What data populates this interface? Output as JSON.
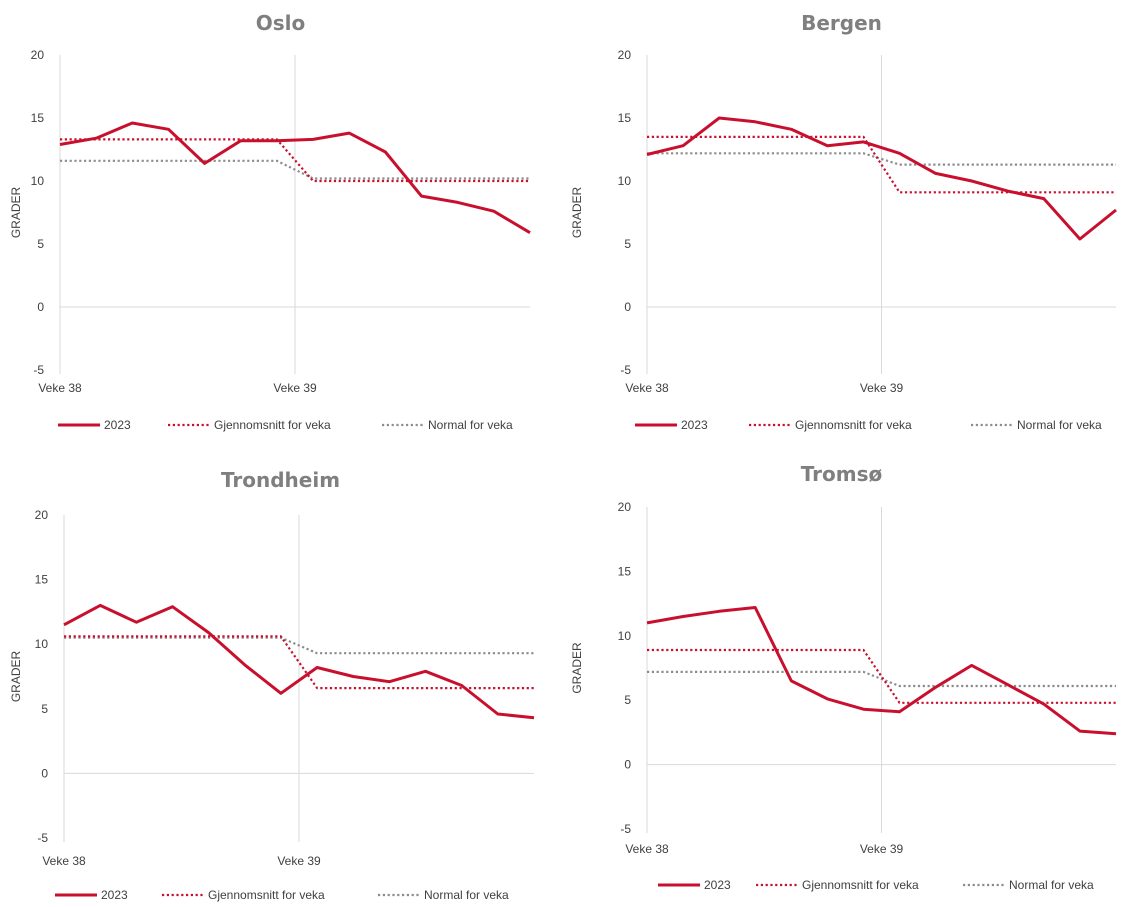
{
  "colors": {
    "actual": "#c8102e",
    "average": "#c8102e",
    "normal": "#8c8c8c",
    "grid": "#d9d9d9",
    "title": "#7f7f7f"
  },
  "legend": {
    "actual": "2023",
    "average": "Gjennomsnitt for veka",
    "normal": "Normal for veka"
  },
  "chart_data": [
    {
      "type": "line",
      "title": "Oslo",
      "ylabel": "GRADER",
      "ylim": [
        -5,
        20
      ],
      "yticks": [
        "-5",
        "0",
        "5",
        "10",
        "15",
        "20"
      ],
      "xticklabels": [
        "Veke 38",
        "Veke 39"
      ],
      "grid": "vertical line at Veke 39",
      "legend_position": "bottom",
      "series": [
        {
          "name": "2023",
          "style": "solid",
          "values": [
            12.9,
            13.4,
            14.6,
            14.1,
            11.4,
            13.2,
            13.2,
            13.3,
            13.8,
            12.3,
            8.8,
            8.3,
            7.6,
            5.9
          ]
        },
        {
          "name": "Gjennomsnitt for veka",
          "style": "dotted",
          "values": [
            13.3,
            13.3,
            13.3,
            13.3,
            13.3,
            13.3,
            13.3,
            10.0,
            10.0,
            10.0,
            10.0,
            10.0,
            10.0,
            10.0
          ]
        },
        {
          "name": "Normal for veka",
          "style": "dotted",
          "values": [
            11.6,
            11.6,
            11.6,
            11.6,
            11.6,
            11.6,
            11.6,
            10.2,
            10.2,
            10.2,
            10.2,
            10.2,
            10.2,
            10.2
          ]
        }
      ]
    },
    {
      "type": "line",
      "title": "Bergen",
      "ylabel": "GRADER",
      "ylim": [
        -5,
        20
      ],
      "yticks": [
        "-5",
        "0",
        "5",
        "10",
        "15",
        "20"
      ],
      "xticklabels": [
        "Veke 38",
        "Veke 39"
      ],
      "grid": "vertical line at Veke 39",
      "legend_position": "bottom",
      "series": [
        {
          "name": "2023",
          "style": "solid",
          "values": [
            12.1,
            12.8,
            15.0,
            14.7,
            14.1,
            12.8,
            13.1,
            12.2,
            10.6,
            10.0,
            9.2,
            8.6,
            5.4,
            7.7
          ]
        },
        {
          "name": "Gjennomsnitt for veka",
          "style": "dotted",
          "values": [
            13.5,
            13.5,
            13.5,
            13.5,
            13.5,
            13.5,
            13.5,
            9.1,
            9.1,
            9.1,
            9.1,
            9.1,
            9.1,
            9.1
          ]
        },
        {
          "name": "Normal for veka",
          "style": "dotted",
          "values": [
            12.2,
            12.2,
            12.2,
            12.2,
            12.2,
            12.2,
            12.2,
            11.3,
            11.3,
            11.3,
            11.3,
            11.3,
            11.3,
            11.3
          ]
        }
      ]
    },
    {
      "type": "line",
      "title": "Trondheim",
      "ylabel": "GRADER",
      "ylim": [
        -5,
        20
      ],
      "yticks": [
        "-5",
        "0",
        "5",
        "10",
        "15",
        "20"
      ],
      "xticklabels": [
        "Veke 38",
        "Veke 39"
      ],
      "grid": "vertical line at Veke 39",
      "legend_position": "bottom",
      "series": [
        {
          "name": "2023",
          "style": "solid",
          "values": [
            11.5,
            13.0,
            11.7,
            12.9,
            10.9,
            8.4,
            6.2,
            8.2,
            7.5,
            7.1,
            7.9,
            6.8,
            4.6,
            4.3
          ]
        },
        {
          "name": "Gjennomsnitt for veka",
          "style": "dotted",
          "values": [
            10.6,
            10.6,
            10.6,
            10.6,
            10.6,
            10.6,
            10.6,
            6.6,
            6.6,
            6.6,
            6.6,
            6.6,
            6.6,
            6.6
          ]
        },
        {
          "name": "Normal for veka",
          "style": "dotted",
          "values": [
            10.5,
            10.5,
            10.5,
            10.5,
            10.5,
            10.5,
            10.5,
            9.3,
            9.3,
            9.3,
            9.3,
            9.3,
            9.3,
            9.3
          ]
        }
      ]
    },
    {
      "type": "line",
      "title": "Tromsø",
      "ylabel": "GRADER",
      "ylim": [
        -5,
        20
      ],
      "yticks": [
        "-5",
        "0",
        "5",
        "10",
        "15",
        "20"
      ],
      "xticklabels": [
        "Veke 38",
        "Veke 39"
      ],
      "grid": "vertical line at Veke 39",
      "legend_position": "bottom",
      "series": [
        {
          "name": "2023",
          "style": "solid",
          "values": [
            11.0,
            11.5,
            11.9,
            12.2,
            6.5,
            5.1,
            4.3,
            4.1,
            6.0,
            7.7,
            6.2,
            4.7,
            2.6,
            2.4
          ]
        },
        {
          "name": "Gjennomsnitt for veka",
          "style": "dotted",
          "values": [
            8.9,
            8.9,
            8.9,
            8.9,
            8.9,
            8.9,
            8.9,
            4.8,
            4.8,
            4.8,
            4.8,
            4.8,
            4.8,
            4.8
          ]
        },
        {
          "name": "Normal for veka",
          "style": "dotted",
          "values": [
            7.2,
            7.2,
            7.2,
            7.2,
            7.2,
            7.2,
            7.2,
            6.1,
            6.1,
            6.1,
            6.1,
            6.1,
            6.1,
            6.1
          ]
        }
      ]
    }
  ]
}
